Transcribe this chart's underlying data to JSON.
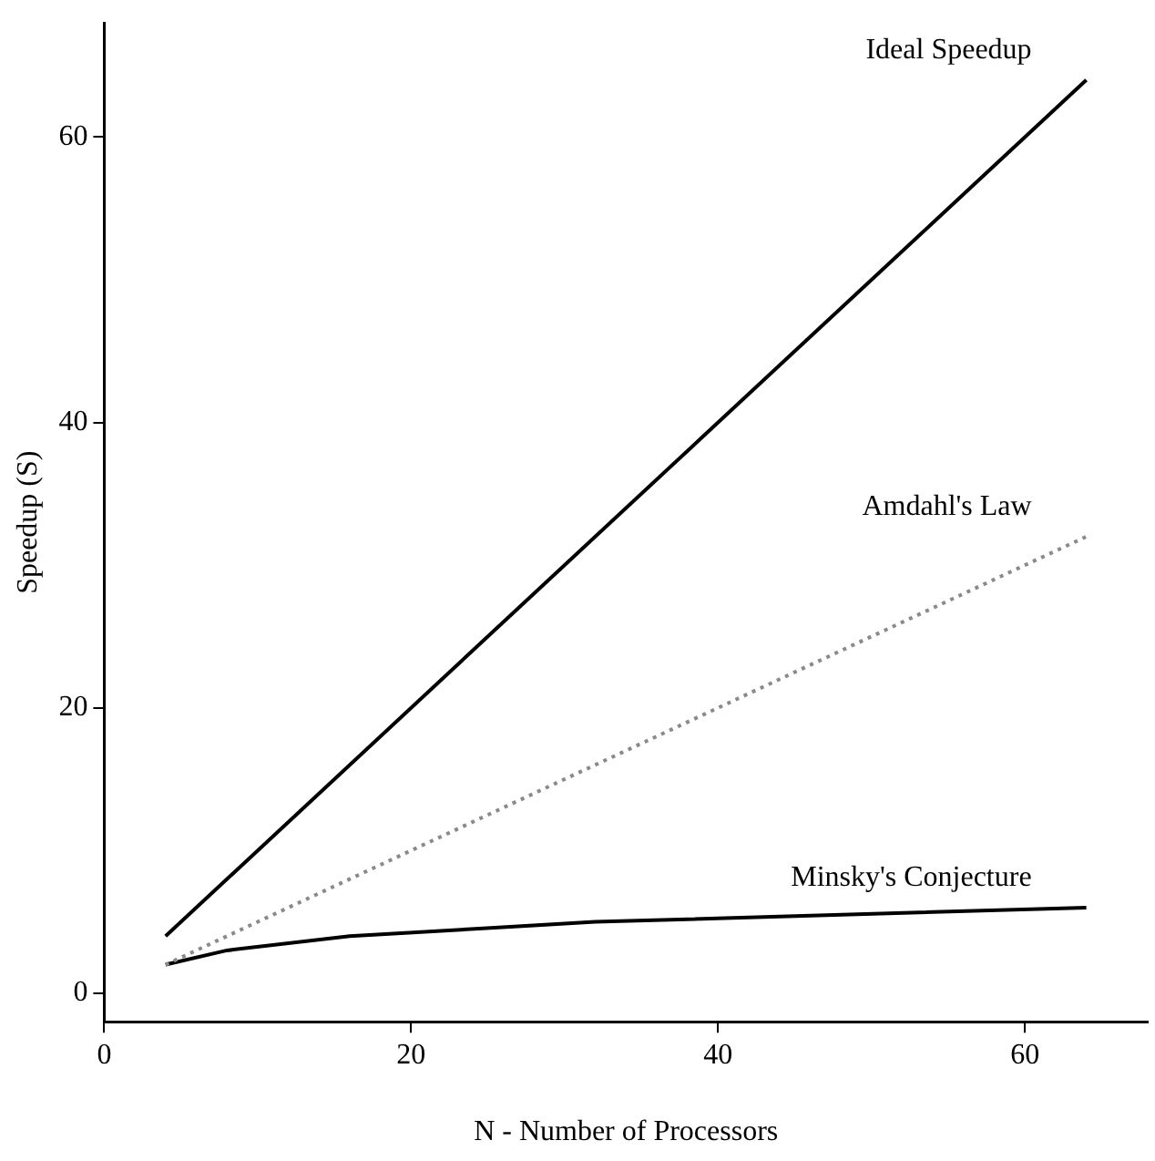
{
  "chart_data": {
    "type": "line",
    "xlabel": "N - Number of Processors",
    "ylabel": "Speedup (S)",
    "xlim": [
      0,
      68
    ],
    "ylim": [
      -2,
      68
    ],
    "xticks": [
      0,
      20,
      40,
      60
    ],
    "yticks": [
      0,
      20,
      40,
      60
    ],
    "grid": false,
    "legend": false,
    "marker": "none",
    "series": [
      {
        "name": "Ideal Speedup",
        "color": "#000000",
        "x": [
          4,
          64
        ],
        "values": [
          4,
          64
        ],
        "line_style": "solid"
      },
      {
        "name": "Amdahl's Law",
        "color": "#8a8a8a",
        "x": [
          4,
          64
        ],
        "values": [
          2,
          32
        ],
        "line_style": "dotted"
      },
      {
        "name": "Minsky's Conjecture",
        "color": "#000000",
        "x": [
          4,
          8,
          16,
          32,
          64
        ],
        "values": [
          2,
          3,
          4,
          5,
          6
        ],
        "line_style": "solid"
      }
    ]
  }
}
